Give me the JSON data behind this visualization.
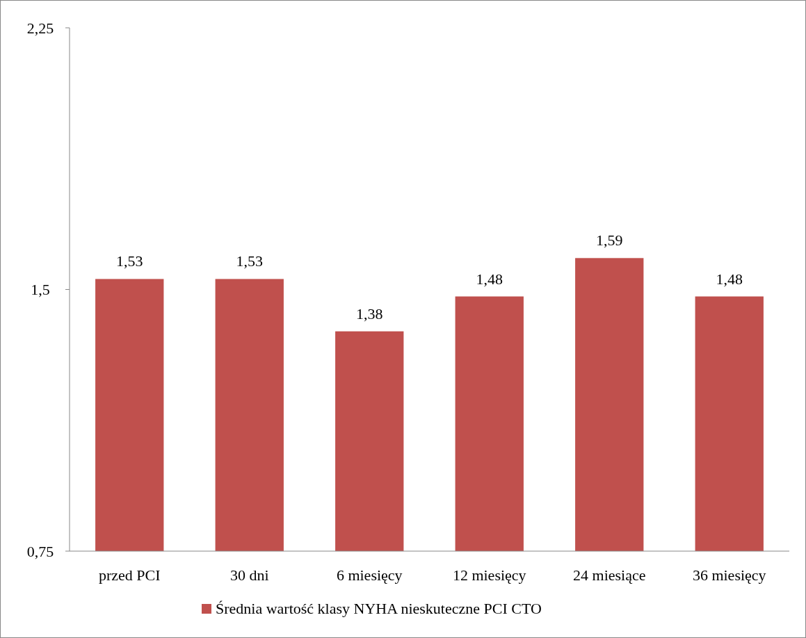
{
  "chart_data": {
    "type": "bar",
    "categories": [
      "przed PCI",
      "30 dni",
      "6 miesięcy",
      "12 miesięcy",
      "24 miesiące",
      "36 miesięcy"
    ],
    "series": [
      {
        "name": "Średnia wartość klasy NYHA nieskuteczne PCI CTO",
        "color": "#c0504d",
        "values": [
          1.53,
          1.53,
          1.38,
          1.48,
          1.59,
          1.48
        ],
        "value_labels": [
          "1,53",
          "1,53",
          "1,38",
          "1,48",
          "1,59",
          "1,48"
        ]
      }
    ],
    "ylim": [
      0.75,
      2.25
    ],
    "yticks": [
      {
        "value": 0.75,
        "label": "0,75"
      },
      {
        "value": 1.5,
        "label": "1,5"
      },
      {
        "value": 2.25,
        "label": "2,25"
      }
    ],
    "legend": "bottom",
    "grid": false
  }
}
